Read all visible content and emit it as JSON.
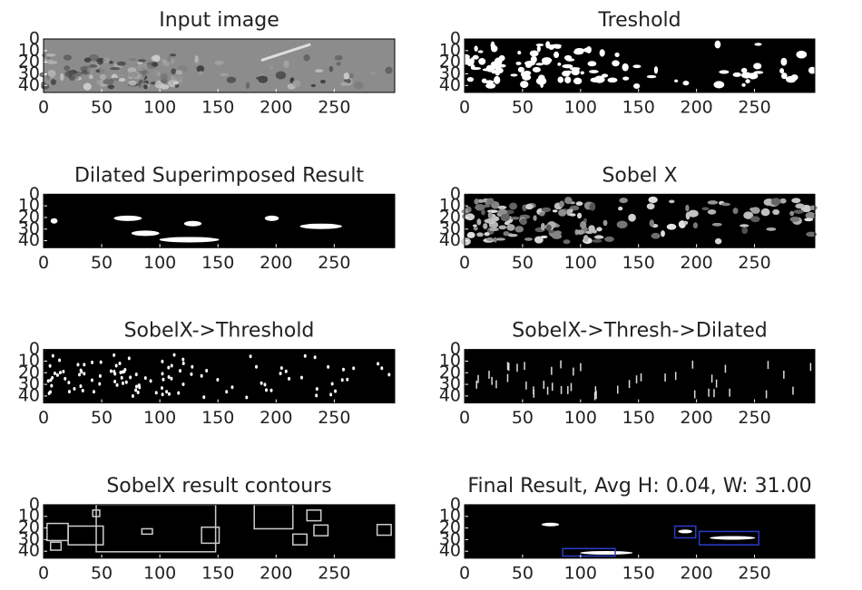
{
  "chart_data": [
    {
      "type": "image",
      "title": "Input image",
      "xlim": [
        0,
        302
      ],
      "ylim": [
        46,
        0
      ],
      "xticks": [
        0,
        50,
        100,
        150,
        200,
        250
      ],
      "yticks": [
        0,
        10,
        20,
        30,
        40
      ]
    },
    {
      "type": "image",
      "title": "Treshold",
      "xlim": [
        0,
        302
      ],
      "ylim": [
        46,
        0
      ],
      "xticks": [
        0,
        50,
        100,
        150,
        200,
        250
      ],
      "yticks": [
        0,
        10,
        20,
        30,
        40
      ]
    },
    {
      "type": "image",
      "title": "Dilated Superimposed Result",
      "xlim": [
        0,
        302
      ],
      "ylim": [
        46,
        0
      ],
      "xticks": [
        0,
        50,
        100,
        150,
        200,
        250
      ],
      "yticks": [
        0,
        10,
        20,
        30,
        40
      ]
    },
    {
      "type": "image",
      "title": "Sobel X",
      "xlim": [
        0,
        302
      ],
      "ylim": [
        46,
        0
      ],
      "xticks": [
        0,
        50,
        100,
        150,
        200,
        250
      ],
      "yticks": [
        0,
        10,
        20,
        30,
        40
      ]
    },
    {
      "type": "image",
      "title": "SobelX->Threshold",
      "xlim": [
        0,
        302
      ],
      "ylim": [
        46,
        0
      ],
      "xticks": [
        0,
        50,
        100,
        150,
        200,
        250
      ],
      "yticks": [
        0,
        10,
        20,
        30,
        40
      ]
    },
    {
      "type": "image",
      "title": "SobelX->Thresh->Dilated",
      "xlim": [
        0,
        302
      ],
      "ylim": [
        46,
        0
      ],
      "xticks": [
        0,
        50,
        100,
        150,
        200,
        250
      ],
      "yticks": [
        0,
        10,
        20,
        30,
        40
      ]
    },
    {
      "type": "image",
      "title": "SobelX result contours",
      "xlim": [
        0,
        302
      ],
      "ylim": [
        46,
        0
      ],
      "xticks": [
        0,
        50,
        100,
        150,
        200,
        250
      ],
      "yticks": [
        0,
        10,
        20,
        30,
        40
      ]
    },
    {
      "type": "image",
      "title": "Final Result, Avg H: 0.04,  W: 31.00",
      "xlim": [
        0,
        302
      ],
      "ylim": [
        46,
        0
      ],
      "xticks": [
        0,
        50,
        100,
        150,
        200,
        250
      ],
      "yticks": [
        0,
        10,
        20,
        30,
        40
      ]
    }
  ]
}
